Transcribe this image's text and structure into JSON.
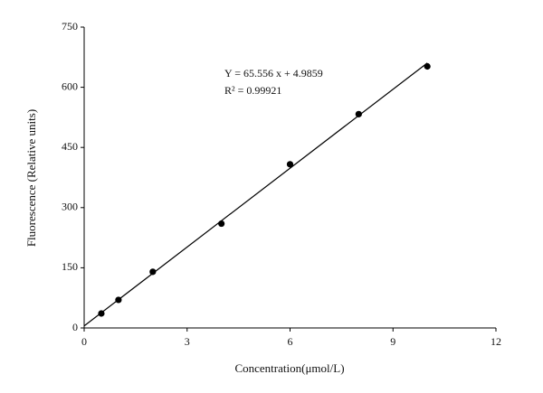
{
  "chart_data": {
    "type": "scatter",
    "x_label": "Concentration(μmol/L)",
    "y_label": "Fluorescence (Relative units)",
    "annotations": [
      "Y = 65.556 x + 4.9859",
      "R² = 0.99921"
    ],
    "x": [
      0.5,
      1,
      2,
      4,
      6,
      8,
      10
    ],
    "series": [
      {
        "name": "Fluorescence",
        "color": "#000000",
        "values": [
          36,
          70,
          140,
          260,
          408,
          533,
          652
        ]
      }
    ],
    "fit": {
      "slope": 65.556,
      "intercept": 4.9859,
      "x_range": [
        0,
        10
      ],
      "color": "#000000"
    },
    "xlim": [
      0,
      12
    ],
    "xticks": [
      0,
      3,
      6,
      9,
      12
    ],
    "ylim": [
      0,
      750
    ],
    "yticks": [
      0,
      150,
      300,
      450,
      600,
      750
    ],
    "grid": false
  }
}
